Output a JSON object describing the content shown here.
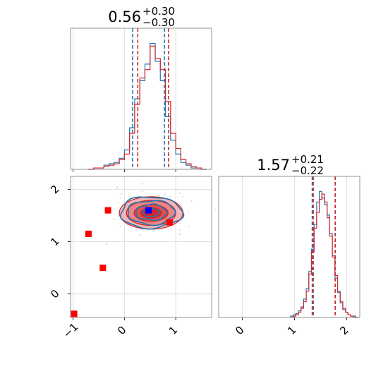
{
  "chart_data": [
    {
      "panel": "marginal-param-1",
      "type": "step-histogram",
      "title": {
        "value": "0.56",
        "plus": "+0.30",
        "minus": "−0.30"
      },
      "x_range": [
        -1.05,
        1.7
      ],
      "x_ticks": [
        -1,
        0,
        1
      ],
      "y_ticks": [],
      "grid": true,
      "series": [
        {
          "color": "#1f77b4",
          "centers": [
            -0.65,
            -0.55,
            -0.45,
            -0.35,
            -0.25,
            -0.15,
            -0.05,
            0.05,
            0.15,
            0.25,
            0.35,
            0.45,
            0.55,
            0.65,
            0.75,
            0.85,
            0.95,
            1.05,
            1.15,
            1.25,
            1.35,
            1.45,
            1.55
          ],
          "counts": [
            0,
            1,
            1,
            3,
            4,
            5,
            8,
            14,
            30,
            51,
            64,
            76,
            91,
            78,
            64,
            38,
            21,
            11,
            5,
            3,
            1,
            1,
            0
          ],
          "quantiles": [
            0.16,
            0.78
          ]
        },
        {
          "color": "#d62728",
          "centers": [
            -0.65,
            -0.55,
            -0.45,
            -0.35,
            -0.25,
            -0.15,
            -0.05,
            0.05,
            0.15,
            0.25,
            0.35,
            0.45,
            0.55,
            0.65,
            0.75,
            0.85,
            0.95,
            1.05,
            1.15,
            1.25,
            1.35,
            1.45,
            1.55
          ],
          "counts": [
            0,
            1,
            1,
            2,
            3,
            4,
            7,
            11,
            26,
            47,
            66,
            72,
            89,
            80,
            72,
            49,
            26,
            15,
            7,
            4,
            2,
            1,
            0
          ],
          "quantiles": [
            0.26,
            0.86
          ]
        }
      ]
    },
    {
      "panel": "joint-param-1-param-2",
      "type": "scatter-contour",
      "x_range": [
        -1.05,
        1.7
      ],
      "y_range": [
        -0.45,
        2.25
      ],
      "x_ticks": [
        -1,
        0,
        1
      ],
      "y_ticks": [
        0,
        1,
        2
      ],
      "grid": true,
      "red_filled_contours": {
        "center": [
          0.52,
          1.55
        ],
        "radii": [
          [
            0.62,
            0.31
          ],
          [
            0.48,
            0.24
          ],
          [
            0.33,
            0.16
          ],
          [
            0.2,
            0.1
          ]
        ],
        "fills": [
          "#f3b6b7",
          "#eb8586",
          "#e14f50",
          "#d62728"
        ]
      },
      "blue_contours": {
        "center": [
          0.52,
          1.56
        ],
        "radii": [
          [
            0.6,
            0.3
          ],
          [
            0.46,
            0.23
          ],
          [
            0.3,
            0.15
          ],
          [
            0.16,
            0.08
          ]
        ],
        "color": "#1f77b4"
      },
      "red_markers": [
        {
          "x": -0.98,
          "y": -0.38
        },
        {
          "x": -0.42,
          "y": 0.5
        },
        {
          "x": -0.7,
          "y": 1.15
        },
        {
          "x": -0.32,
          "y": 1.6
        },
        {
          "x": 0.88,
          "y": 1.37
        }
      ],
      "blue_markers": [
        {
          "x": 0.47,
          "y": 1.6
        }
      ]
    },
    {
      "panel": "marginal-param-2",
      "type": "step-histogram",
      "title": {
        "value": "1.57",
        "plus": "+0.21",
        "minus": "−0.22"
      },
      "x_range": [
        -0.45,
        2.25
      ],
      "x_ticks": [
        0,
        1,
        2
      ],
      "y_ticks": [],
      "grid": true,
      "series": [
        {
          "color": "#1f77b4",
          "centers": [
            0.95,
            1.0,
            1.05,
            1.1,
            1.15,
            1.2,
            1.25,
            1.3,
            1.35,
            1.4,
            1.45,
            1.5,
            1.55,
            1.6,
            1.65,
            1.7,
            1.75,
            1.8,
            1.85,
            1.9,
            1.95,
            2.0,
            2.05,
            2.1,
            2.15,
            2.2
          ],
          "counts": [
            1,
            2,
            3,
            5,
            8,
            14,
            22,
            35,
            52,
            71,
            88,
            96,
            91,
            86,
            78,
            64,
            47,
            30,
            19,
            11,
            6,
            4,
            2,
            1,
            1,
            0
          ],
          "quantiles": [
            1.34,
            1.78
          ]
        },
        {
          "color": "#d62728",
          "centers": [
            0.95,
            1.0,
            1.05,
            1.1,
            1.15,
            1.2,
            1.25,
            1.3,
            1.35,
            1.4,
            1.45,
            1.5,
            1.55,
            1.6,
            1.65,
            1.7,
            1.75,
            1.8,
            1.85,
            1.9,
            1.95,
            2.0,
            2.05,
            2.1,
            2.15,
            2.2
          ],
          "counts": [
            0,
            1,
            2,
            4,
            7,
            12,
            20,
            33,
            50,
            68,
            80,
            90,
            94,
            88,
            76,
            62,
            46,
            32,
            20,
            12,
            7,
            4,
            2,
            1,
            0,
            0
          ],
          "quantiles": [
            1.36,
            1.78
          ]
        }
      ]
    }
  ]
}
